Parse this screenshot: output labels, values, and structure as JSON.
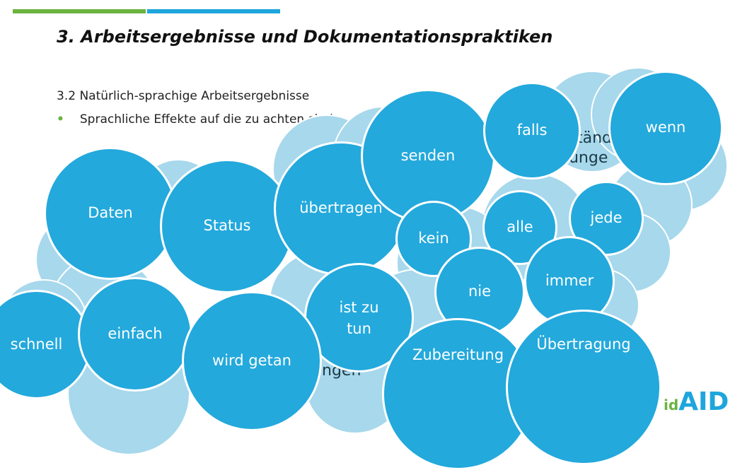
{
  "slide": {
    "title": "3. Arbeitsergebnisse und Dokumentationspraktiken",
    "subtitle": "3.2 Natürlich-sprachige Arbeitsergebnisse",
    "bullet": "Sprachliche Effekte auf die zu achten sind"
  },
  "colors": {
    "bubble": "#23a9dc",
    "cloud": "#a7d8ec",
    "accent_green": "#6cb33f",
    "accent_blue": "#1ea6dc"
  },
  "bubbles": [
    {
      "id": "daten",
      "label": "Daten"
    },
    {
      "id": "status",
      "label": "Status"
    },
    {
      "id": "uebertragen",
      "label": "übertragen"
    },
    {
      "id": "senden",
      "label": "senden"
    },
    {
      "id": "falls",
      "label": "falls"
    },
    {
      "id": "wenn",
      "label": "wenn"
    },
    {
      "id": "kein",
      "label": "kein"
    },
    {
      "id": "alle",
      "label": "alle"
    },
    {
      "id": "jede",
      "label": "jede"
    },
    {
      "id": "nie",
      "label": "nie"
    },
    {
      "id": "immer",
      "label": "immer"
    },
    {
      "id": "ist-zu-tun",
      "label": "ist zu tun"
    },
    {
      "id": "schnell",
      "label": "schnell"
    },
    {
      "id": "einfach",
      "label": "einfach"
    },
    {
      "id": "wird-getan",
      "label": "wird getan"
    },
    {
      "id": "zubereitung",
      "label": "Zubereitung"
    },
    {
      "id": "uebertragung",
      "label": "Übertragung"
    }
  ],
  "hidden_fragments": [
    "tänd",
    "gunge",
    "ngen"
  ],
  "logo": {
    "small": "id",
    "big": "AID"
  }
}
